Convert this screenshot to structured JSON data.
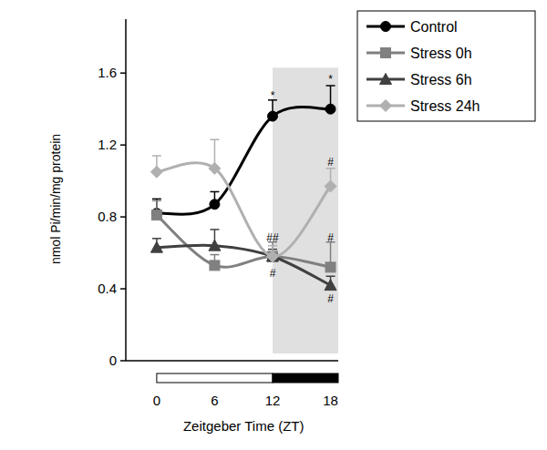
{
  "chart_data": {
    "type": "line",
    "x_label": "Zeitgeber Time (ZT)",
    "y_label": "nmol Pi/min/mg protein",
    "x": [
      0,
      6,
      12,
      18
    ],
    "xlim": [
      -3.2,
      18.8
    ],
    "xticks": [
      0,
      6,
      12,
      18
    ],
    "ylim": [
      0,
      1.9
    ],
    "yticks": [
      0,
      0.4,
      0.8,
      1.2,
      1.6
    ],
    "legend": "top-right",
    "light_phase": [
      0,
      12
    ],
    "dark_phase": [
      12,
      18.8
    ],
    "dark_shading": {
      "x": [
        12,
        18.8
      ],
      "y": [
        0.04,
        1.63
      ]
    },
    "series": [
      {
        "name": "Control",
        "color": "#000000",
        "marker": "circle",
        "line_style": "smooth",
        "values": [
          0.82,
          0.87,
          1.36,
          1.4
        ],
        "errors": [
          0.08,
          0.07,
          0.09,
          0.13
        ]
      },
      {
        "name": "Stress 0h",
        "color": "#808080",
        "marker": "square",
        "line_style": "smooth",
        "values": [
          0.81,
          0.53,
          0.58,
          0.52
        ],
        "errors": [
          0.08,
          0.06,
          0.08,
          0.14
        ]
      },
      {
        "name": "Stress 6h",
        "color": "#404040",
        "marker": "triangle",
        "line_style": "smooth",
        "values": [
          0.63,
          0.64,
          0.58,
          0.42
        ],
        "errors": [
          0.05,
          0.09,
          0.04,
          0.05
        ]
      },
      {
        "name": "Stress 24h",
        "color": "#b0b0b0",
        "marker": "diamond",
        "line_style": "smooth",
        "values": [
          1.05,
          1.07,
          0.58,
          0.97
        ],
        "errors": [
          0.09,
          0.16,
          0.06,
          0.1
        ]
      }
    ],
    "annotations": [
      {
        "text": "*",
        "x": 12,
        "y": 1.48
      },
      {
        "text": "*",
        "x": 18,
        "y": 1.57
      },
      {
        "text": "##",
        "x": 12,
        "y": 0.69
      },
      {
        "text": "#",
        "x": 12,
        "y": 0.49
      },
      {
        "text": "#",
        "x": 18,
        "y": 1.11
      },
      {
        "text": "#",
        "x": 18,
        "y": 0.69
      },
      {
        "text": "#",
        "x": 18,
        "y": 0.35
      }
    ]
  }
}
